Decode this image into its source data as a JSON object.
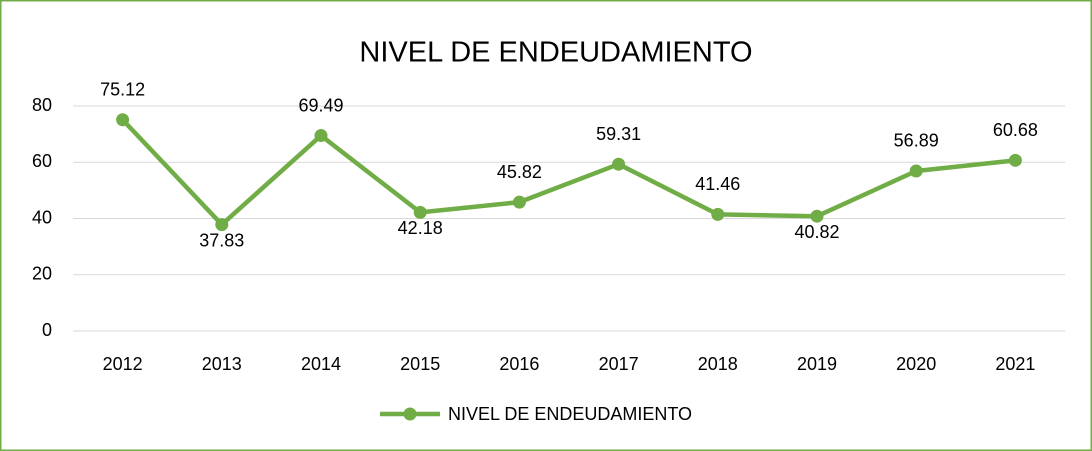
{
  "chart_data": {
    "type": "line",
    "title": "NIVEL DE ENDEUDAMIENTO",
    "categories": [
      "2012",
      "2013",
      "2014",
      "2015",
      "2016",
      "2017",
      "2018",
      "2019",
      "2020",
      "2021"
    ],
    "series": [
      {
        "name": "NIVEL DE ENDEUDAMIENTO",
        "color": "#70ad47",
        "values": [
          75.12,
          37.83,
          69.49,
          42.18,
          45.82,
          59.31,
          41.46,
          40.82,
          56.89,
          60.68
        ]
      }
    ],
    "ylim": [
      0,
      80
    ],
    "yticks": [
      0,
      20,
      40,
      60,
      80
    ],
    "grid": true,
    "legend": "bottom"
  }
}
